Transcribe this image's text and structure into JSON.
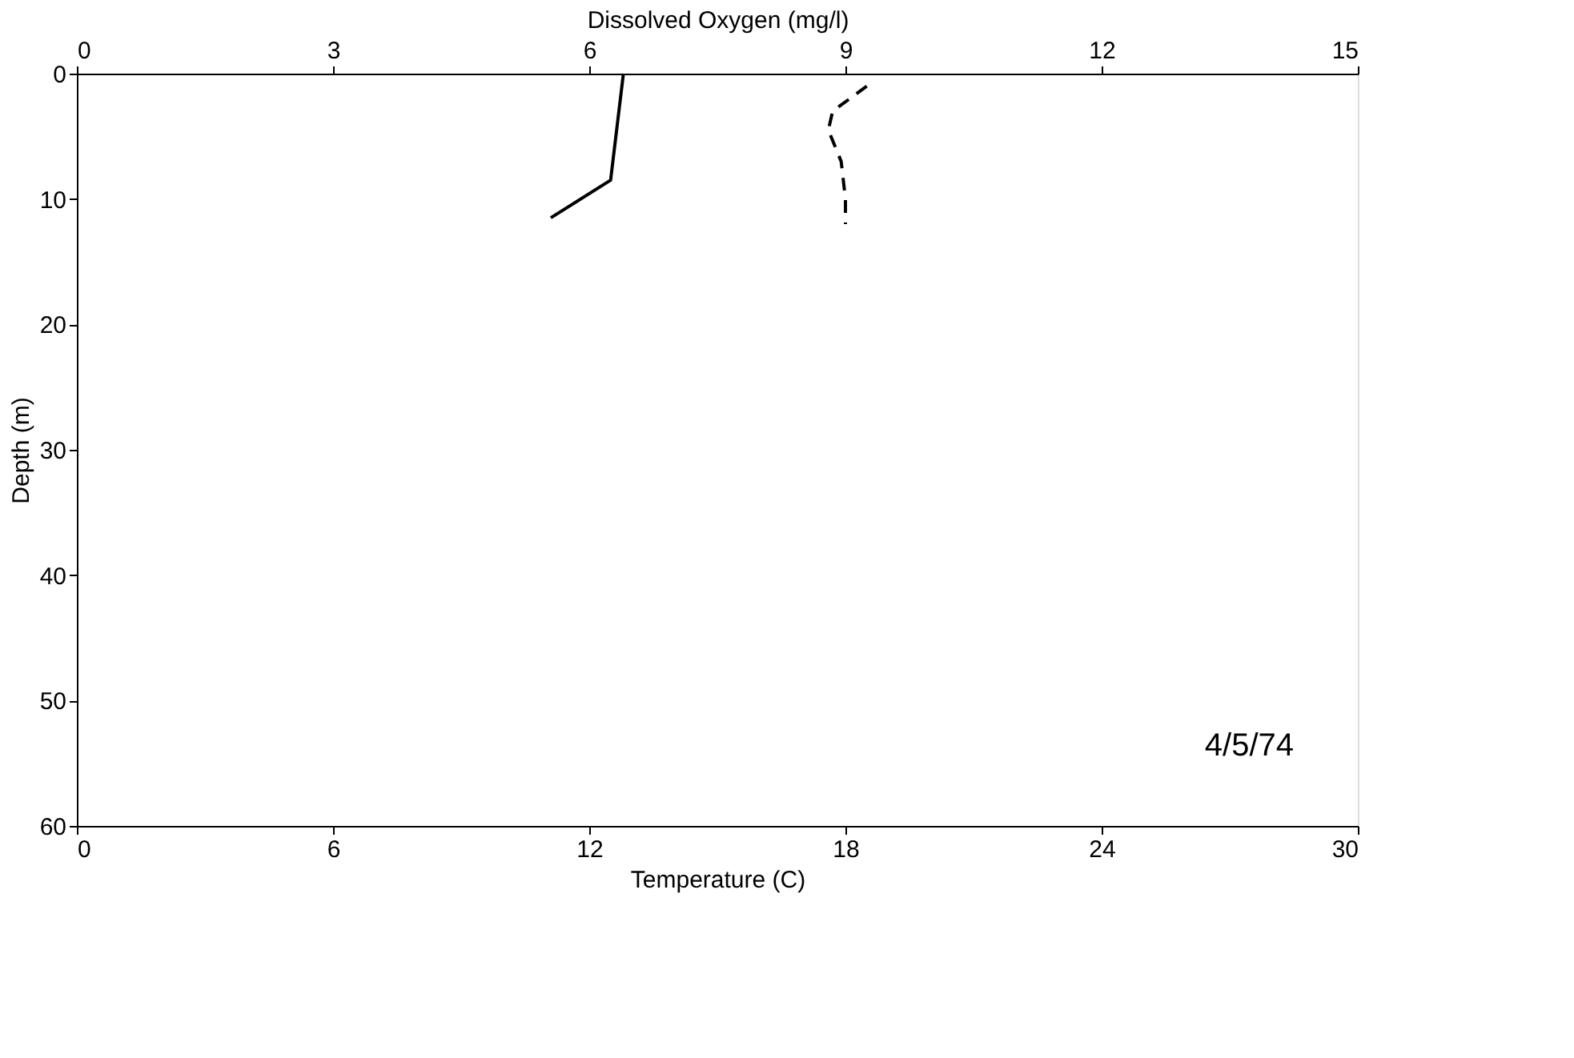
{
  "chart_data": {
    "type": "line",
    "xlabel": "Temperature (C)",
    "x2label": "Dissolved Oxygen (mg/l)",
    "ylabel": "Depth (m)",
    "xlim": [
      0,
      30
    ],
    "xticks": [
      0,
      6,
      12,
      18,
      24,
      30
    ],
    "x2lim": [
      0,
      15
    ],
    "x2ticks": [
      0,
      3,
      6,
      9,
      12,
      15
    ],
    "ylim": [
      60,
      0
    ],
    "yticks": [
      0,
      10,
      20,
      30,
      40,
      50,
      60
    ],
    "series": [
      {
        "color": "#000000",
        "line_style": "solid",
        "x": [
          12.8,
          12.5,
          11.1
        ],
        "values": [
          0,
          8.5,
          11.5
        ]
      },
      {
        "color": "#000000",
        "line_style": "dashed",
        "axis": "x2",
        "x": [
          9.25,
          8.85,
          8.8,
          8.95,
          9.0,
          9.0
        ],
        "values": [
          1,
          3,
          4.5,
          7,
          10,
          12
        ]
      }
    ],
    "annotations": [
      "4/5/74"
    ],
    "grid": false,
    "marker": "none"
  }
}
